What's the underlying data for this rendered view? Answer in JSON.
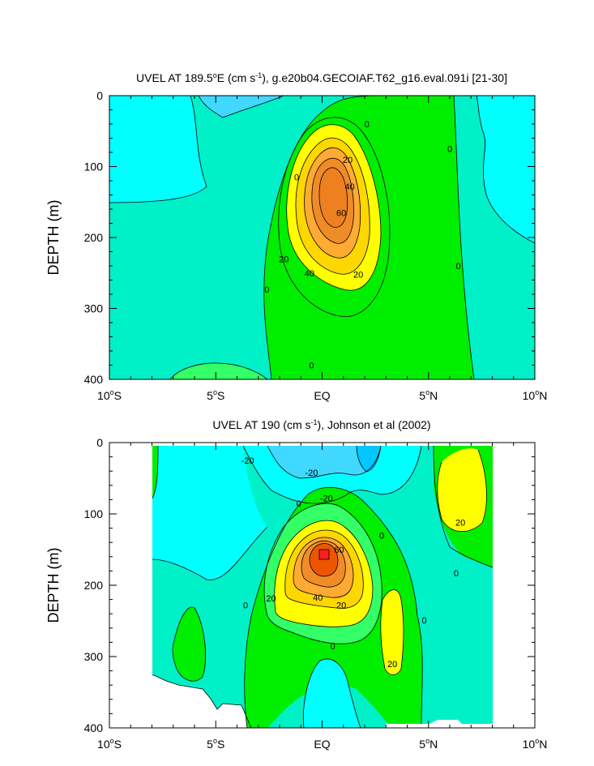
{
  "chart_data": [
    {
      "type": "heatmap",
      "subtype": "filled-contour",
      "title": "UVEL AT 189.5°E (cm s⁻¹), g.e20b04.GECOIAF.T62_g16.eval.091i [21-30]",
      "ylabel": "DEPTH (m)",
      "xlabel": "",
      "xlim": [
        -10,
        10
      ],
      "ylim": [
        400,
        0
      ],
      "y_axis_inverted": true,
      "x_ticks": [
        {
          "value": -10,
          "label": "10°S"
        },
        {
          "value": -5,
          "label": "5°S"
        },
        {
          "value": 0,
          "label": "EQ"
        },
        {
          "value": 5,
          "label": "5°N"
        },
        {
          "value": 10,
          "label": "10°N"
        }
      ],
      "y_ticks": [
        {
          "value": 0,
          "label": "0"
        },
        {
          "value": 100,
          "label": "100"
        },
        {
          "value": 200,
          "label": "200"
        },
        {
          "value": 300,
          "label": "300"
        },
        {
          "value": 400,
          "label": "400"
        }
      ],
      "contour_interval": 10,
      "core_max_value": 65,
      "core_location": {
        "lat": 0,
        "depth": 165
      },
      "contour_labels": [
        {
          "text": "0",
          "lat": 2.1,
          "depth": 40
        },
        {
          "text": "0",
          "lat": 6.0,
          "depth": 75
        },
        {
          "text": "0",
          "lat": -1.2,
          "depth": 115
        },
        {
          "text": "20",
          "lat": 1.2,
          "depth": 90
        },
        {
          "text": "40",
          "lat": 1.3,
          "depth": 128
        },
        {
          "text": "60",
          "lat": 0.9,
          "depth": 165
        },
        {
          "text": "20",
          "lat": -1.8,
          "depth": 230
        },
        {
          "text": "40",
          "lat": -0.6,
          "depth": 250
        },
        {
          "text": "20",
          "lat": 1.7,
          "depth": 252
        },
        {
          "text": "0",
          "lat": 6.4,
          "depth": 240
        },
        {
          "text": "0",
          "lat": -2.6,
          "depth": 273
        },
        {
          "text": "0",
          "lat": -0.5,
          "depth": 380
        }
      ],
      "colors": [
        "#00ffff",
        "#00f0c8",
        "#33ff66",
        "#00ee00",
        "#ffff00",
        "#ffd700",
        "#ffaa33",
        "#f08c28",
        "#ee5500",
        "#ff2020",
        "#40d8ff"
      ]
    },
    {
      "type": "heatmap",
      "subtype": "filled-contour",
      "title": "UVEL AT 190 (cm s⁻¹), Johnson et al (2002)",
      "ylabel": "DEPTH (m)",
      "xlabel": "",
      "xlim": [
        -10,
        10
      ],
      "ylim": [
        400,
        0
      ],
      "y_axis_inverted": true,
      "x_ticks": [
        {
          "value": -10,
          "label": "10°S"
        },
        {
          "value": -5,
          "label": "5°S"
        },
        {
          "value": 0,
          "label": "EQ"
        },
        {
          "value": 5,
          "label": "5°N"
        },
        {
          "value": 10,
          "label": "10°N"
        }
      ],
      "y_ticks": [
        {
          "value": 0,
          "label": "0"
        },
        {
          "value": 100,
          "label": "100"
        },
        {
          "value": 200,
          "label": "200"
        },
        {
          "value": 300,
          "label": "300"
        },
        {
          "value": 400,
          "label": "400"
        }
      ],
      "data_lat_range": [
        -8,
        8
      ],
      "contour_interval": 10,
      "core_max_value": 80,
      "core_location": {
        "lat": 0,
        "depth": 148
      },
      "contour_labels": [
        {
          "text": "-20",
          "lat": -3.5,
          "depth": 25
        },
        {
          "text": "-20",
          "lat": -0.5,
          "depth": 42
        },
        {
          "text": "-20",
          "lat": 0.2,
          "depth": 78
        },
        {
          "text": "0",
          "lat": -1.1,
          "depth": 85
        },
        {
          "text": "20",
          "lat": 6.5,
          "depth": 112
        },
        {
          "text": "0",
          "lat": 2.8,
          "depth": 130
        },
        {
          "text": "60",
          "lat": 0.8,
          "depth": 150
        },
        {
          "text": "0",
          "lat": 6.3,
          "depth": 183
        },
        {
          "text": "20",
          "lat": -2.4,
          "depth": 218
        },
        {
          "text": "40",
          "lat": -0.2,
          "depth": 217
        },
        {
          "text": "20",
          "lat": 0.9,
          "depth": 228
        },
        {
          "text": "0",
          "lat": -3.6,
          "depth": 228
        },
        {
          "text": "0",
          "lat": 4.8,
          "depth": 249
        },
        {
          "text": "0",
          "lat": 0.5,
          "depth": 285
        },
        {
          "text": "20",
          "lat": 3.3,
          "depth": 310
        }
      ],
      "colors": [
        "#00ffff",
        "#00f0c8",
        "#33ff66",
        "#00ee00",
        "#ffff00",
        "#ffd700",
        "#ffaa33",
        "#f08c28",
        "#ee5500",
        "#ff2020",
        "#40d8ff"
      ]
    }
  ],
  "panels": [
    {
      "title_prefix": "UVEL AT 189.5",
      "title_sup_deg": "o",
      "title_mid": "E (cm s",
      "title_sup_exp": "-1",
      "title_suffix": "), g.e20b04.GECOIAF.T62_g16.eval.091i [21-30]"
    },
    {
      "title_prefix": "UVEL AT 190 (cm s",
      "title_sup_exp": "-1",
      "title_suffix": "), Johnson et al (2002)"
    }
  ],
  "x_tick_parts": [
    {
      "num": "10",
      "deg": "o",
      "hem": "S"
    },
    {
      "num": "5",
      "deg": "o",
      "hem": "S"
    },
    {
      "num": "EQ",
      "deg": "",
      "hem": ""
    },
    {
      "num": "5",
      "deg": "o",
      "hem": "N"
    },
    {
      "num": "10",
      "deg": "o",
      "hem": "N"
    }
  ]
}
